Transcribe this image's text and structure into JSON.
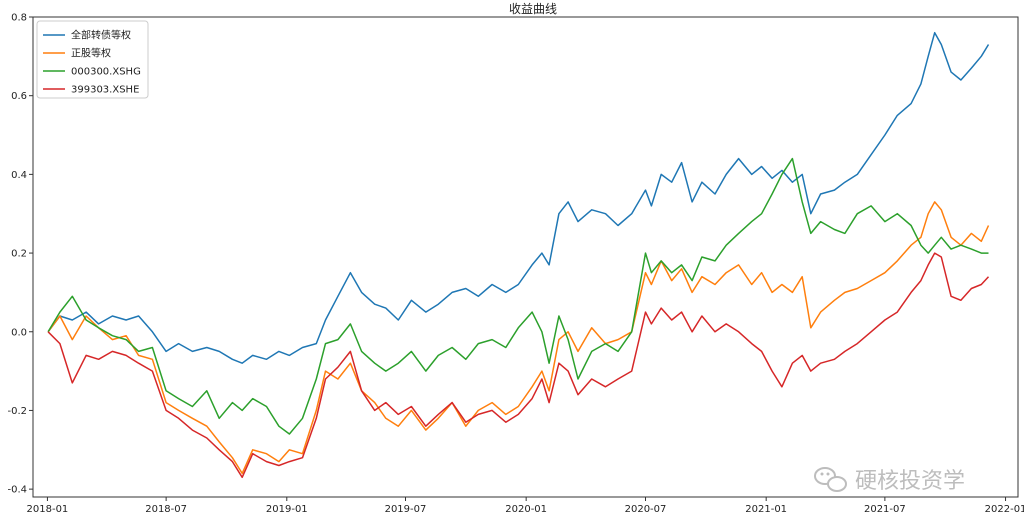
{
  "chart_data": {
    "type": "line",
    "title": "收益曲线",
    "xlabel": "",
    "ylabel": "",
    "xlim": [
      "2017-12-10",
      "2022-01-20"
    ],
    "ylim": [
      -0.42,
      0.8
    ],
    "x_ticks": [
      "2018-01",
      "2018-07",
      "2019-01",
      "2019-07",
      "2020-01",
      "2020-07",
      "2021-01",
      "2021-07",
      "2022-01"
    ],
    "y_ticks": [
      -0.4,
      -0.2,
      0.0,
      0.2,
      0.4,
      0.6,
      0.8
    ],
    "y_tick_labels": [
      "-0.4",
      "-0.2",
      "0.0",
      "0.2",
      "0.4",
      "0.6",
      "0.8"
    ],
    "grid": false,
    "legend_position": "top-left",
    "series": [
      {
        "name": "全部转债等权",
        "color": "#1f77b4",
        "x": [
          "2018-01-02",
          "2018-01-20",
          "2018-02-08",
          "2018-03-01",
          "2018-03-20",
          "2018-04-10",
          "2018-05-01",
          "2018-05-20",
          "2018-06-10",
          "2018-07-01",
          "2018-07-20",
          "2018-08-10",
          "2018-09-01",
          "2018-09-20",
          "2018-10-10",
          "2018-10-25",
          "2018-11-10",
          "2018-12-01",
          "2018-12-20",
          "2019-01-05",
          "2019-01-25",
          "2019-02-15",
          "2019-03-01",
          "2019-03-20",
          "2019-04-08",
          "2019-04-25",
          "2019-05-15",
          "2019-06-01",
          "2019-06-20",
          "2019-07-10",
          "2019-08-01",
          "2019-08-20",
          "2019-09-10",
          "2019-10-01",
          "2019-10-20",
          "2019-11-10",
          "2019-12-01",
          "2019-12-20",
          "2020-01-10",
          "2020-01-25",
          "2020-02-05",
          "2020-02-20",
          "2020-03-05",
          "2020-03-20",
          "2020-04-10",
          "2020-05-01",
          "2020-05-20",
          "2020-06-10",
          "2020-07-01",
          "2020-07-10",
          "2020-07-25",
          "2020-08-10",
          "2020-08-25",
          "2020-09-10",
          "2020-09-25",
          "2020-10-15",
          "2020-11-01",
          "2020-11-20",
          "2020-12-10",
          "2020-12-25",
          "2021-01-10",
          "2021-01-25",
          "2021-02-10",
          "2021-02-25",
          "2021-03-10",
          "2021-03-25",
          "2021-04-15",
          "2021-05-01",
          "2021-05-20",
          "2021-06-10",
          "2021-07-01",
          "2021-07-20",
          "2021-08-10",
          "2021-08-25",
          "2021-09-05",
          "2021-09-15",
          "2021-09-25",
          "2021-10-10",
          "2021-10-25",
          "2021-11-10",
          "2021-11-25",
          "2021-12-06"
        ],
        "values": [
          0.0,
          0.04,
          0.03,
          0.05,
          0.02,
          0.04,
          0.03,
          0.04,
          0.0,
          -0.05,
          -0.03,
          -0.05,
          -0.04,
          -0.05,
          -0.07,
          -0.08,
          -0.06,
          -0.07,
          -0.05,
          -0.06,
          -0.04,
          -0.03,
          0.03,
          0.09,
          0.15,
          0.1,
          0.07,
          0.06,
          0.03,
          0.08,
          0.05,
          0.07,
          0.1,
          0.11,
          0.09,
          0.12,
          0.1,
          0.12,
          0.17,
          0.2,
          0.17,
          0.3,
          0.33,
          0.28,
          0.31,
          0.3,
          0.27,
          0.3,
          0.36,
          0.32,
          0.4,
          0.38,
          0.43,
          0.33,
          0.38,
          0.35,
          0.4,
          0.44,
          0.4,
          0.42,
          0.39,
          0.41,
          0.38,
          0.4,
          0.3,
          0.35,
          0.36,
          0.38,
          0.4,
          0.45,
          0.5,
          0.55,
          0.58,
          0.63,
          0.7,
          0.76,
          0.73,
          0.66,
          0.64,
          0.67,
          0.7,
          0.73
        ]
      },
      {
        "name": "正股等权",
        "color": "#ff7f0e",
        "x": [
          "2018-01-02",
          "2018-01-20",
          "2018-02-08",
          "2018-03-01",
          "2018-03-20",
          "2018-04-10",
          "2018-05-01",
          "2018-05-20",
          "2018-06-10",
          "2018-07-01",
          "2018-07-20",
          "2018-08-10",
          "2018-09-01",
          "2018-09-20",
          "2018-10-10",
          "2018-10-25",
          "2018-11-10",
          "2018-12-01",
          "2018-12-20",
          "2019-01-05",
          "2019-01-25",
          "2019-02-15",
          "2019-03-01",
          "2019-03-20",
          "2019-04-08",
          "2019-04-25",
          "2019-05-15",
          "2019-06-01",
          "2019-06-20",
          "2019-07-10",
          "2019-08-01",
          "2019-08-20",
          "2019-09-10",
          "2019-10-01",
          "2019-10-20",
          "2019-11-10",
          "2019-12-01",
          "2019-12-20",
          "2020-01-10",
          "2020-01-25",
          "2020-02-05",
          "2020-02-20",
          "2020-03-05",
          "2020-03-20",
          "2020-04-10",
          "2020-05-01",
          "2020-05-20",
          "2020-06-10",
          "2020-07-01",
          "2020-07-10",
          "2020-07-25",
          "2020-08-10",
          "2020-08-25",
          "2020-09-10",
          "2020-09-25",
          "2020-10-15",
          "2020-11-01",
          "2020-11-20",
          "2020-12-10",
          "2020-12-25",
          "2021-01-10",
          "2021-01-25",
          "2021-02-10",
          "2021-02-25",
          "2021-03-10",
          "2021-03-25",
          "2021-04-15",
          "2021-05-01",
          "2021-05-20",
          "2021-06-10",
          "2021-07-01",
          "2021-07-20",
          "2021-08-10",
          "2021-08-25",
          "2021-09-05",
          "2021-09-15",
          "2021-09-25",
          "2021-10-10",
          "2021-10-25",
          "2021-11-10",
          "2021-11-25",
          "2021-12-06"
        ],
        "values": [
          0.0,
          0.04,
          -0.02,
          0.04,
          0.01,
          -0.02,
          -0.01,
          -0.06,
          -0.07,
          -0.18,
          -0.2,
          -0.22,
          -0.24,
          -0.28,
          -0.32,
          -0.36,
          -0.3,
          -0.31,
          -0.33,
          -0.3,
          -0.31,
          -0.2,
          -0.1,
          -0.12,
          -0.08,
          -0.15,
          -0.18,
          -0.22,
          -0.24,
          -0.2,
          -0.25,
          -0.22,
          -0.18,
          -0.24,
          -0.2,
          -0.18,
          -0.21,
          -0.19,
          -0.14,
          -0.1,
          -0.15,
          -0.02,
          0.0,
          -0.05,
          0.01,
          -0.03,
          -0.02,
          0.0,
          0.15,
          0.12,
          0.18,
          0.13,
          0.16,
          0.1,
          0.14,
          0.12,
          0.15,
          0.17,
          0.12,
          0.15,
          0.1,
          0.12,
          0.1,
          0.14,
          0.01,
          0.05,
          0.08,
          0.1,
          0.11,
          0.13,
          0.15,
          0.18,
          0.22,
          0.24,
          0.3,
          0.33,
          0.31,
          0.24,
          0.22,
          0.25,
          0.23,
          0.27
        ]
      },
      {
        "name": "000300.XSHG",
        "color": "#2ca02c",
        "x": [
          "2018-01-02",
          "2018-01-20",
          "2018-02-08",
          "2018-03-01",
          "2018-03-20",
          "2018-04-10",
          "2018-05-01",
          "2018-05-20",
          "2018-06-10",
          "2018-07-01",
          "2018-07-20",
          "2018-08-10",
          "2018-09-01",
          "2018-09-20",
          "2018-10-10",
          "2018-10-25",
          "2018-11-10",
          "2018-12-01",
          "2018-12-20",
          "2019-01-05",
          "2019-01-25",
          "2019-02-15",
          "2019-03-01",
          "2019-03-20",
          "2019-04-08",
          "2019-04-25",
          "2019-05-15",
          "2019-06-01",
          "2019-06-20",
          "2019-07-10",
          "2019-08-01",
          "2019-08-20",
          "2019-09-10",
          "2019-10-01",
          "2019-10-20",
          "2019-11-10",
          "2019-12-01",
          "2019-12-20",
          "2020-01-10",
          "2020-01-25",
          "2020-02-05",
          "2020-02-20",
          "2020-03-05",
          "2020-03-20",
          "2020-04-10",
          "2020-05-01",
          "2020-05-20",
          "2020-06-10",
          "2020-07-01",
          "2020-07-10",
          "2020-07-25",
          "2020-08-10",
          "2020-08-25",
          "2020-09-10",
          "2020-09-25",
          "2020-10-15",
          "2020-11-01",
          "2020-11-20",
          "2020-12-10",
          "2020-12-25",
          "2021-01-10",
          "2021-01-25",
          "2021-02-10",
          "2021-02-25",
          "2021-03-10",
          "2021-03-25",
          "2021-04-15",
          "2021-05-01",
          "2021-05-20",
          "2021-06-10",
          "2021-07-01",
          "2021-07-20",
          "2021-08-10",
          "2021-08-25",
          "2021-09-05",
          "2021-09-15",
          "2021-09-25",
          "2021-10-10",
          "2021-10-25",
          "2021-11-10",
          "2021-11-25",
          "2021-12-06"
        ],
        "values": [
          0.0,
          0.05,
          0.09,
          0.03,
          0.01,
          -0.01,
          -0.02,
          -0.05,
          -0.04,
          -0.15,
          -0.17,
          -0.19,
          -0.15,
          -0.22,
          -0.18,
          -0.2,
          -0.17,
          -0.19,
          -0.24,
          -0.26,
          -0.22,
          -0.12,
          -0.03,
          -0.02,
          0.02,
          -0.05,
          -0.08,
          -0.1,
          -0.08,
          -0.05,
          -0.1,
          -0.06,
          -0.04,
          -0.07,
          -0.03,
          -0.02,
          -0.04,
          0.01,
          0.05,
          0.0,
          -0.08,
          0.04,
          -0.02,
          -0.12,
          -0.05,
          -0.03,
          -0.05,
          0.0,
          0.2,
          0.15,
          0.18,
          0.15,
          0.17,
          0.13,
          0.19,
          0.18,
          0.22,
          0.25,
          0.28,
          0.3,
          0.35,
          0.4,
          0.44,
          0.33,
          0.25,
          0.28,
          0.26,
          0.25,
          0.3,
          0.32,
          0.28,
          0.3,
          0.27,
          0.22,
          0.2,
          0.22,
          0.24,
          0.21,
          0.22,
          0.21,
          0.2,
          0.2
        ]
      },
      {
        "name": "399303.XSHE",
        "color": "#d62728",
        "x": [
          "2018-01-02",
          "2018-01-20",
          "2018-02-08",
          "2018-03-01",
          "2018-03-20",
          "2018-04-10",
          "2018-05-01",
          "2018-05-20",
          "2018-06-10",
          "2018-07-01",
          "2018-07-20",
          "2018-08-10",
          "2018-09-01",
          "2018-09-20",
          "2018-10-10",
          "2018-10-25",
          "2018-11-10",
          "2018-12-01",
          "2018-12-20",
          "2019-01-05",
          "2019-01-25",
          "2019-02-15",
          "2019-03-01",
          "2019-03-20",
          "2019-04-08",
          "2019-04-25",
          "2019-05-15",
          "2019-06-01",
          "2019-06-20",
          "2019-07-10",
          "2019-08-01",
          "2019-08-20",
          "2019-09-10",
          "2019-10-01",
          "2019-10-20",
          "2019-11-10",
          "2019-12-01",
          "2019-12-20",
          "2020-01-10",
          "2020-01-25",
          "2020-02-05",
          "2020-02-20",
          "2020-03-05",
          "2020-03-20",
          "2020-04-10",
          "2020-05-01",
          "2020-05-20",
          "2020-06-10",
          "2020-07-01",
          "2020-07-10",
          "2020-07-25",
          "2020-08-10",
          "2020-08-25",
          "2020-09-10",
          "2020-09-25",
          "2020-10-15",
          "2020-11-01",
          "2020-11-20",
          "2020-12-10",
          "2020-12-25",
          "2021-01-10",
          "2021-01-25",
          "2021-02-10",
          "2021-02-25",
          "2021-03-10",
          "2021-03-25",
          "2021-04-15",
          "2021-05-01",
          "2021-05-20",
          "2021-06-10",
          "2021-07-01",
          "2021-07-20",
          "2021-08-10",
          "2021-08-25",
          "2021-09-05",
          "2021-09-15",
          "2021-09-25",
          "2021-10-10",
          "2021-10-25",
          "2021-11-10",
          "2021-11-25",
          "2021-12-06"
        ],
        "values": [
          0.0,
          -0.03,
          -0.13,
          -0.06,
          -0.07,
          -0.05,
          -0.06,
          -0.08,
          -0.1,
          -0.2,
          -0.22,
          -0.25,
          -0.27,
          -0.3,
          -0.33,
          -0.37,
          -0.31,
          -0.33,
          -0.34,
          -0.33,
          -0.32,
          -0.22,
          -0.12,
          -0.09,
          -0.05,
          -0.15,
          -0.2,
          -0.18,
          -0.21,
          -0.19,
          -0.24,
          -0.21,
          -0.18,
          -0.23,
          -0.21,
          -0.2,
          -0.23,
          -0.21,
          -0.17,
          -0.12,
          -0.18,
          -0.08,
          -0.1,
          -0.16,
          -0.12,
          -0.14,
          -0.12,
          -0.1,
          0.05,
          0.02,
          0.06,
          0.03,
          0.05,
          0.0,
          0.04,
          0.0,
          0.02,
          0.0,
          -0.03,
          -0.05,
          -0.1,
          -0.14,
          -0.08,
          -0.06,
          -0.1,
          -0.08,
          -0.07,
          -0.05,
          -0.03,
          0.0,
          0.03,
          0.05,
          0.1,
          0.13,
          0.17,
          0.2,
          0.19,
          0.09,
          0.08,
          0.11,
          0.12,
          0.14
        ]
      }
    ]
  },
  "watermark": {
    "icon": "wechat-icon",
    "text": "硬核投资学"
  }
}
